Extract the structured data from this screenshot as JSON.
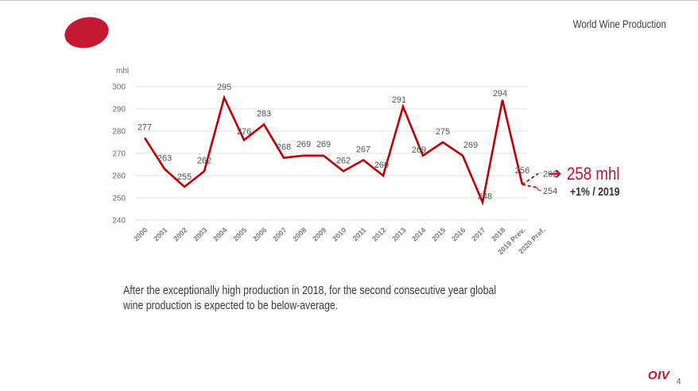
{
  "slide": {
    "title": "World Wine Production",
    "page_number": "4",
    "brand_logo_text": "OIV",
    "accent_color": "#c8102e",
    "caption_lines": [
      "After the exceptionally high production in 2018, for the second consecutive year global",
      "wine production is expected to be below-average."
    ]
  },
  "forecast_callout": {
    "arrow_icon": "right-arrow",
    "value": "258 mhl",
    "change": "+1% / 2019"
  },
  "chart_data": {
    "type": "line",
    "title": "",
    "xlabel": "",
    "ylabel": "mhl",
    "ylim": [
      240,
      300
    ],
    "yticks": [
      240,
      250,
      260,
      270,
      280,
      290,
      300
    ],
    "grid": true,
    "legend": "none",
    "categories": [
      "2000",
      "2001",
      "2002",
      "2003",
      "2004",
      "2005",
      "2006",
      "2007",
      "2008",
      "2009",
      "2010",
      "2011",
      "2012",
      "2013",
      "2014",
      "2015",
      "2016",
      "2017",
      "2018",
      "2019 Prev.",
      "2020 Pref."
    ],
    "series": [
      {
        "name": "World wine production",
        "color": "#c00000",
        "style": "solid",
        "values": [
          277,
          263,
          255,
          262,
          295,
          276,
          283,
          268,
          269,
          269,
          262,
          267,
          260,
          291,
          269,
          275,
          269,
          248,
          294,
          256
        ],
        "labels": [
          "277",
          "263",
          "255",
          "262",
          "295",
          "276",
          "283",
          "268",
          "269",
          "269",
          "262",
          "267",
          "260",
          "291",
          "269",
          "275",
          "269",
          "248",
          "294",
          "256"
        ]
      }
    ],
    "forecast_range": {
      "color": "#c00000",
      "style": "dashed",
      "from_value": 256,
      "high": 262,
      "low": 254,
      "high_label": "262",
      "low_label": "254"
    }
  }
}
